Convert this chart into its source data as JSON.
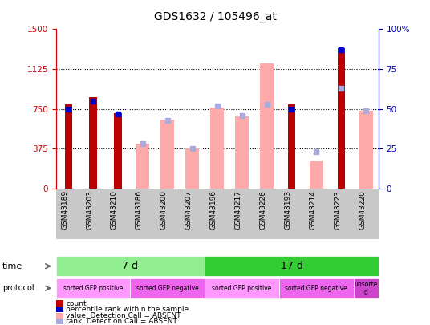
{
  "title": "GDS1632 / 105496_at",
  "samples": [
    "GSM43189",
    "GSM43203",
    "GSM43210",
    "GSM43186",
    "GSM43200",
    "GSM43207",
    "GSM43196",
    "GSM43217",
    "GSM43226",
    "GSM43193",
    "GSM43214",
    "GSM43223",
    "GSM43220"
  ],
  "count_values": [
    790,
    860,
    710,
    null,
    null,
    null,
    null,
    null,
    null,
    790,
    null,
    1320,
    null
  ],
  "count_ranks": [
    50,
    55,
    47,
    null,
    null,
    null,
    null,
    null,
    null,
    50,
    null,
    87,
    null
  ],
  "absent_values": [
    null,
    null,
    null,
    420,
    650,
    375,
    760,
    680,
    1180,
    null,
    260,
    null,
    730
  ],
  "absent_ranks": [
    null,
    null,
    null,
    28,
    43,
    25,
    52,
    46,
    53,
    null,
    23,
    63,
    49
  ],
  "ylim_left": [
    0,
    1500
  ],
  "ylim_right": [
    0,
    100
  ],
  "yticks_left": [
    0,
    375,
    750,
    1125,
    1500
  ],
  "yticks_right": [
    0,
    25,
    50,
    75,
    100
  ],
  "time_groups": [
    {
      "label": "7 d",
      "start": 0,
      "end": 6,
      "color": "#90EE90"
    },
    {
      "label": "17 d",
      "start": 6,
      "end": 13,
      "color": "#33CC33"
    }
  ],
  "protocol_groups": [
    {
      "label": "sorted GFP positive",
      "start": 0,
      "end": 3,
      "color": "#FF99FF"
    },
    {
      "label": "sorted GFP negative",
      "start": 3,
      "end": 6,
      "color": "#EE66EE"
    },
    {
      "label": "sorted GFP positive",
      "start": 6,
      "end": 9,
      "color": "#FF99FF"
    },
    {
      "label": "sorted GFP negative",
      "start": 9,
      "end": 12,
      "color": "#EE66EE"
    },
    {
      "label": "unsorte\nd",
      "start": 12,
      "end": 13,
      "color": "#CC44CC"
    }
  ],
  "count_color": "#BB0000",
  "absent_value_color": "#FFAAAA",
  "rank_color_present": "#0000CC",
  "rank_color_absent": "#AAAADD",
  "axis_left_color": "#CC0000",
  "axis_right_color": "#0000BB",
  "grid_color": "#000000",
  "xlabel_area_color": "#C8C8C8"
}
